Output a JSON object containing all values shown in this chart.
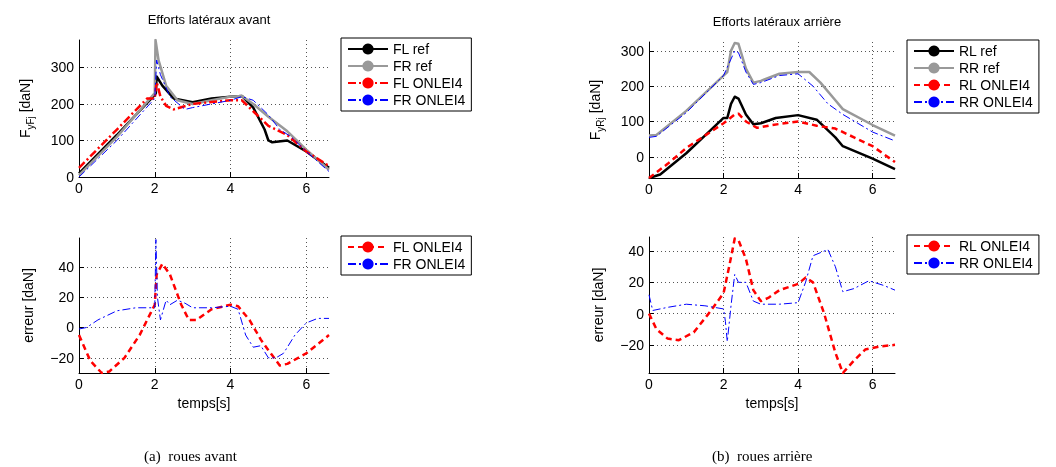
{
  "chart_data": [
    {
      "type": "line",
      "title": "Efforts latéraux avant",
      "ylabel": "F$_{yFj}$ [daN]",
      "xlim": [
        0,
        6.6
      ],
      "xticks": [
        0,
        2,
        4,
        6
      ],
      "ylim": [
        0,
        375
      ],
      "yticks": [
        0,
        100,
        200,
        300
      ],
      "grid": true,
      "legend": "right",
      "marker": "none",
      "series": [
        {
          "name": "FL ref",
          "color": "#000000",
          "line_style": "solid",
          "x": [
            0,
            1,
            2,
            2.03,
            2.05,
            2.2,
            2.5,
            3,
            3.5,
            4,
            4.3,
            4.6,
            4.9,
            5.0,
            5.1,
            5.5,
            6,
            6.6
          ],
          "values": [
            10,
            115,
            225,
            230,
            275,
            250,
            215,
            205,
            215,
            220,
            222,
            190,
            130,
            100,
            95,
            100,
            70,
            25
          ]
        },
        {
          "name": "FR ref",
          "color": "#999999",
          "line_style": "solid",
          "x": [
            0,
            1,
            2,
            2.02,
            2.1,
            2.3,
            2.6,
            3,
            3.5,
            4,
            4.3,
            4.6,
            5,
            5.5,
            6,
            6.6
          ],
          "values": [
            5,
            110,
            230,
            375,
            320,
            250,
            210,
            200,
            210,
            220,
            222,
            200,
            165,
            125,
            75,
            20
          ]
        },
        {
          "name": "FL ONLEI4",
          "color": "#ff0000",
          "line_style": "dashdot",
          "x": [
            0,
            1,
            1.8,
            2.0,
            2.05,
            2.15,
            2.3,
            2.5,
            3,
            3.5,
            4,
            4.3,
            4.6,
            5,
            5.5,
            6,
            6.6
          ],
          "values": [
            25,
            130,
            215,
            215,
            260,
            220,
            195,
            185,
            200,
            205,
            210,
            210,
            180,
            140,
            115,
            70,
            30
          ]
        },
        {
          "name": "FR ONLEI4",
          "color": "#0000ff",
          "line_style": "dashdot",
          "x": [
            0,
            1,
            2,
            2.05,
            2.15,
            2.4,
            2.8,
            3,
            3.5,
            4,
            4.3,
            4.6,
            5,
            5.3,
            5.6,
            6,
            6.6
          ],
          "values": [
            0,
            100,
            215,
            320,
            280,
            220,
            185,
            190,
            200,
            210,
            220,
            210,
            170,
            130,
            110,
            70,
            15
          ]
        }
      ]
    },
    {
      "type": "line",
      "xlabel": "temps[s]",
      "ylabel": "erreur [daN]",
      "annotations": [
        "(a)  roues avant"
      ],
      "xlim": [
        0,
        6.6
      ],
      "xticks": [
        0,
        2,
        4,
        6
      ],
      "ylim": [
        -30,
        59
      ],
      "yticks": [
        -20,
        0,
        20,
        40
      ],
      "grid": true,
      "legend": "right",
      "marker": "none",
      "series": [
        {
          "name": "FL ONLEI4",
          "color": "#ff0000",
          "line_style": "dashed",
          "x": [
            0,
            0.3,
            0.6,
            0.8,
            1.2,
            1.6,
            1.9,
            2.0,
            2.05,
            2.2,
            2.4,
            2.7,
            2.9,
            3.1,
            3.5,
            4.0,
            4.2,
            4.5,
            4.8,
            5.0,
            5.3,
            5.5,
            6.0,
            6.6
          ],
          "values": [
            -5,
            -22,
            -30,
            -29,
            -20,
            -5,
            10,
            15,
            35,
            42,
            35,
            15,
            5,
            5,
            12,
            15,
            14,
            5,
            -8,
            -15,
            -25,
            -24,
            -17,
            -5
          ]
        },
        {
          "name": "FR ONLEI4",
          "color": "#0000ff",
          "line_style": "dashdot",
          "x": [
            0,
            0.2,
            0.5,
            1,
            1.5,
            2,
            2.03,
            2.07,
            2.15,
            2.3,
            2.4,
            2.6,
            2.8,
            3,
            3.5,
            4,
            4.2,
            4.4,
            4.6,
            4.8,
            5,
            5.2,
            5.4,
            5.7,
            6,
            6.3,
            6.6
          ],
          "values": [
            -1,
            0,
            5,
            11,
            13,
            13,
            58,
            20,
            5,
            18,
            15,
            18,
            16,
            13,
            13,
            14,
            12,
            -5,
            -13,
            -12,
            -20,
            -20,
            -17,
            -5,
            3,
            6,
            6
          ]
        }
      ]
    },
    {
      "type": "line",
      "title": "Efforts latéraux arrière",
      "ylabel": "F$_{yRj}$ [daN]",
      "xlim": [
        0,
        6.6
      ],
      "xticks": [
        0,
        2,
        4,
        6
      ],
      "ylim": [
        -60,
        325
      ],
      "yticks": [
        0,
        100,
        200,
        300
      ],
      "grid": true,
      "legend": "right",
      "marker": "none",
      "series": [
        {
          "name": "RL ref",
          "color": "#000000",
          "line_style": "solid",
          "x": [
            0,
            0.3,
            1,
            1.5,
            2,
            2.1,
            2.2,
            2.3,
            2.4,
            2.6,
            2.8,
            3,
            3.4,
            4,
            4.5,
            5,
            5.2,
            6,
            6.6
          ],
          "values": [
            -60,
            -50,
            10,
            60,
            110,
            110,
            150,
            170,
            165,
            120,
            92,
            95,
            110,
            118,
            105,
            55,
            30,
            -5,
            -35
          ]
        },
        {
          "name": "RR ref",
          "color": "#999999",
          "line_style": "solid",
          "x": [
            0,
            0.2,
            1,
            2,
            2.1,
            2.2,
            2.3,
            2.4,
            2.6,
            2.8,
            3,
            3.5,
            4,
            4.3,
            4.6,
            5,
            5.2,
            6,
            6.6
          ],
          "values": [
            60,
            62,
            130,
            230,
            240,
            300,
            322,
            320,
            250,
            210,
            215,
            235,
            240,
            240,
            210,
            160,
            135,
            90,
            60
          ]
        },
        {
          "name": "RL ONLEI4",
          "color": "#ff0000",
          "line_style": "dashed",
          "x": [
            0,
            0.5,
            1,
            1.5,
            2,
            2.3,
            2.4,
            2.6,
            2.9,
            3.3,
            4,
            4.5,
            5,
            5.5,
            6,
            6.6
          ],
          "values": [
            -60,
            -20,
            25,
            60,
            95,
            120,
            122,
            100,
            82,
            90,
            100,
            88,
            80,
            55,
            30,
            -15
          ]
        },
        {
          "name": "RR ONLEI4",
          "color": "#0000ff",
          "line_style": "dashdot",
          "x": [
            0,
            0.2,
            1,
            2,
            2.3,
            2.4,
            2.6,
            2.8,
            3,
            3.5,
            4,
            4.4,
            4.8,
            5.2,
            6,
            6.6
          ],
          "values": [
            55,
            58,
            125,
            230,
            300,
            295,
            240,
            205,
            210,
            230,
            235,
            200,
            150,
            120,
            70,
            45
          ]
        }
      ]
    },
    {
      "type": "line",
      "xlabel": "temps[s]",
      "ylabel": "erreur [daN]",
      "annotations": [
        "(b)  roues arrière"
      ],
      "xlim": [
        0,
        6.6
      ],
      "xticks": [
        0,
        2,
        4,
        6
      ],
      "ylim": [
        -38,
        49
      ],
      "yticks": [
        -20,
        0,
        20,
        40
      ],
      "grid": true,
      "legend": "right",
      "marker": "none",
      "series": [
        {
          "name": "RL ONLEI4",
          "color": "#ff0000",
          "line_style": "dashed",
          "x": [
            0,
            0.2,
            0.5,
            0.8,
            1.2,
            1.6,
            2,
            2.15,
            2.3,
            2.4,
            2.6,
            2.8,
            3,
            3.2,
            3.5,
            4,
            4.2,
            4.4,
            4.7,
            5,
            5.2,
            5.5,
            5.8,
            6.2,
            6.6
          ],
          "values": [
            0,
            -10,
            -16,
            -17,
            -12,
            0,
            13,
            30,
            48,
            47,
            35,
            15,
            8,
            10,
            15,
            19,
            23,
            20,
            0,
            -25,
            -38,
            -30,
            -23,
            -21,
            -20
          ]
        },
        {
          "name": "RR ONLEI4",
          "color": "#0000ff",
          "line_style": "dashdot",
          "x": [
            0,
            0.1,
            0.5,
            1,
            1.5,
            2,
            2.05,
            2.1,
            2.2,
            2.3,
            2.4,
            2.6,
            2.8,
            3,
            3.5,
            4,
            4.2,
            4.4,
            4.8,
            5,
            5.2,
            5.5,
            5.9,
            6.3,
            6.6
          ],
          "values": [
            12,
            2,
            4,
            6,
            5,
            3,
            -5,
            -18,
            5,
            25,
            20,
            20,
            8,
            6,
            6,
            7,
            20,
            37,
            41,
            30,
            14,
            16,
            21,
            18,
            15
          ]
        }
      ]
    }
  ]
}
